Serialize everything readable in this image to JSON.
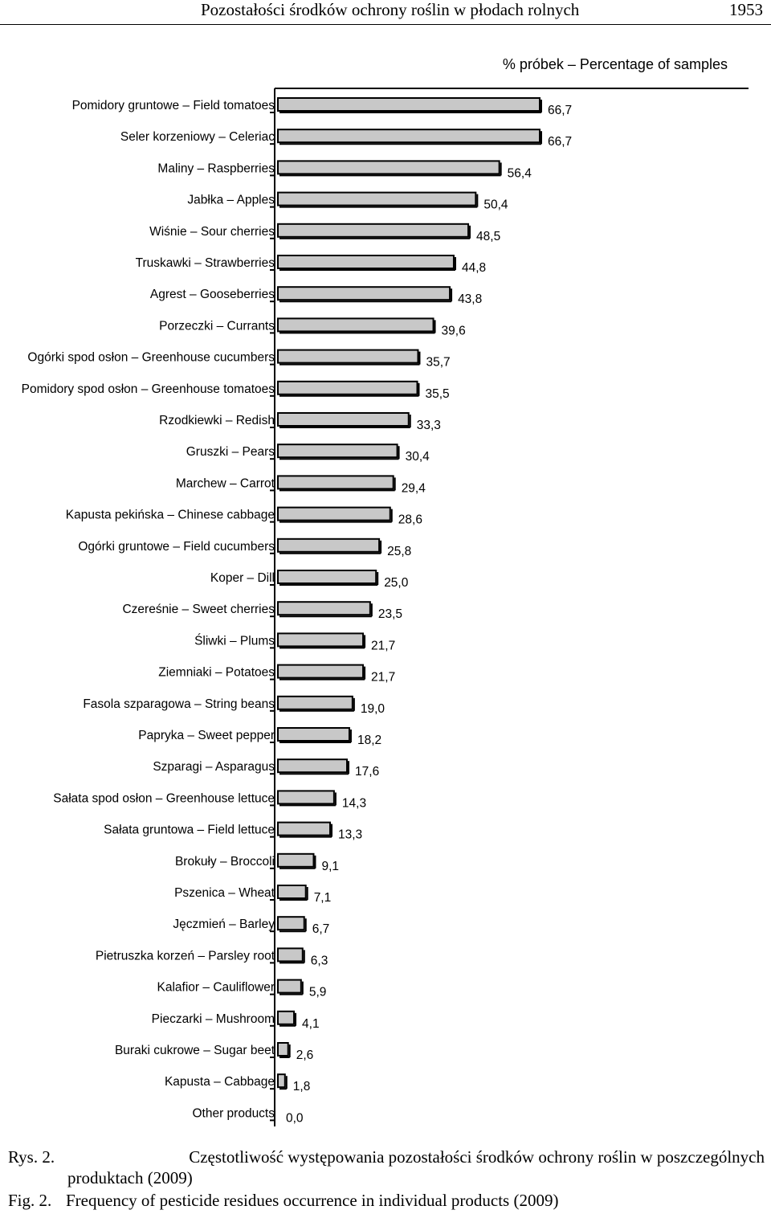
{
  "header": {
    "title": "Pozostałości środków ochrony roślin w płodach rolnych",
    "page_number": "1953"
  },
  "chart_data": {
    "type": "bar",
    "orientation": "horizontal",
    "axis_title": "% próbek – Percentage of samples",
    "categories": [
      "Pomidory gruntowe – Field tomatoes",
      "Seler korzeniowy – Celeriac",
      "Maliny – Raspberries",
      "Jabłka – Apples",
      "Wiśnie – Sour cherries",
      "Truskawki – Strawberries",
      "Agrest – Gooseberries",
      "Porzeczki – Currants",
      "Ogórki spod osłon – Greenhouse cucumbers",
      "Pomidory spod osłon – Greenhouse tomatoes",
      "Rzodkiewki – Redish",
      "Gruszki – Pears",
      "Marchew – Carrot",
      "Kapusta pekińska – Chinese cabbage",
      "Ogórki gruntowe – Field cucumbers",
      "Koper – Dill",
      "Czereśnie – Sweet cherries",
      "Śliwki – Plums",
      "Ziemniaki – Potatoes",
      "Fasola szparagowa – String beans",
      "Papryka – Sweet pepper",
      "Szparagi – Asparagus",
      "Sałata spod osłon – Greenhouse lettuce",
      "Sałata gruntowa – Field lettuce",
      "Brokuły – Broccoli",
      "Pszenica – Wheat",
      "Jęczmień – Barley",
      "Pietruszka korzeń – Parsley root",
      "Kalafior – Cauliflower",
      "Pieczarki – Mushroom",
      "Buraki cukrowe – Sugar beet",
      "Kapusta – Cabbage",
      "Other products"
    ],
    "values": [
      66.7,
      66.7,
      56.4,
      50.4,
      48.5,
      44.8,
      43.8,
      39.6,
      35.7,
      35.5,
      33.3,
      30.4,
      29.4,
      28.6,
      25.8,
      25.0,
      23.5,
      21.7,
      21.7,
      19.0,
      18.2,
      17.6,
      14.3,
      13.3,
      9.1,
      7.1,
      6.7,
      6.3,
      5.9,
      4.1,
      2.6,
      1.8,
      0.0
    ],
    "value_labels": [
      "66,7",
      "66,7",
      "56,4",
      "50,4",
      "48,5",
      "44,8",
      "43,8",
      "39,6",
      "35,7",
      "35,5",
      "33,3",
      "30,4",
      "29,4",
      "28,6",
      "25,8",
      "25,0",
      "23,5",
      "21,7",
      "21,7",
      "19,0",
      "18,2",
      "17,6",
      "14,3",
      "13,3",
      "9,1",
      "7,1",
      "6,7",
      "6,3",
      "5,9",
      "4,1",
      "2,6",
      "1,8",
      "0,0"
    ],
    "colors": {
      "bar_fill": "#c8c8c8",
      "bar_stroke": "#000000"
    }
  },
  "caption": {
    "pl_label": "Rys. 2.",
    "pl_line1": "Częstotliwość występowania pozostałości środków ochrony roślin w poszczególnych",
    "pl_line2": "produktach (2009)",
    "en_label": "Fig. 2.",
    "en_text": "Frequency of pesticide residues occurrence in individual products (2009)"
  }
}
